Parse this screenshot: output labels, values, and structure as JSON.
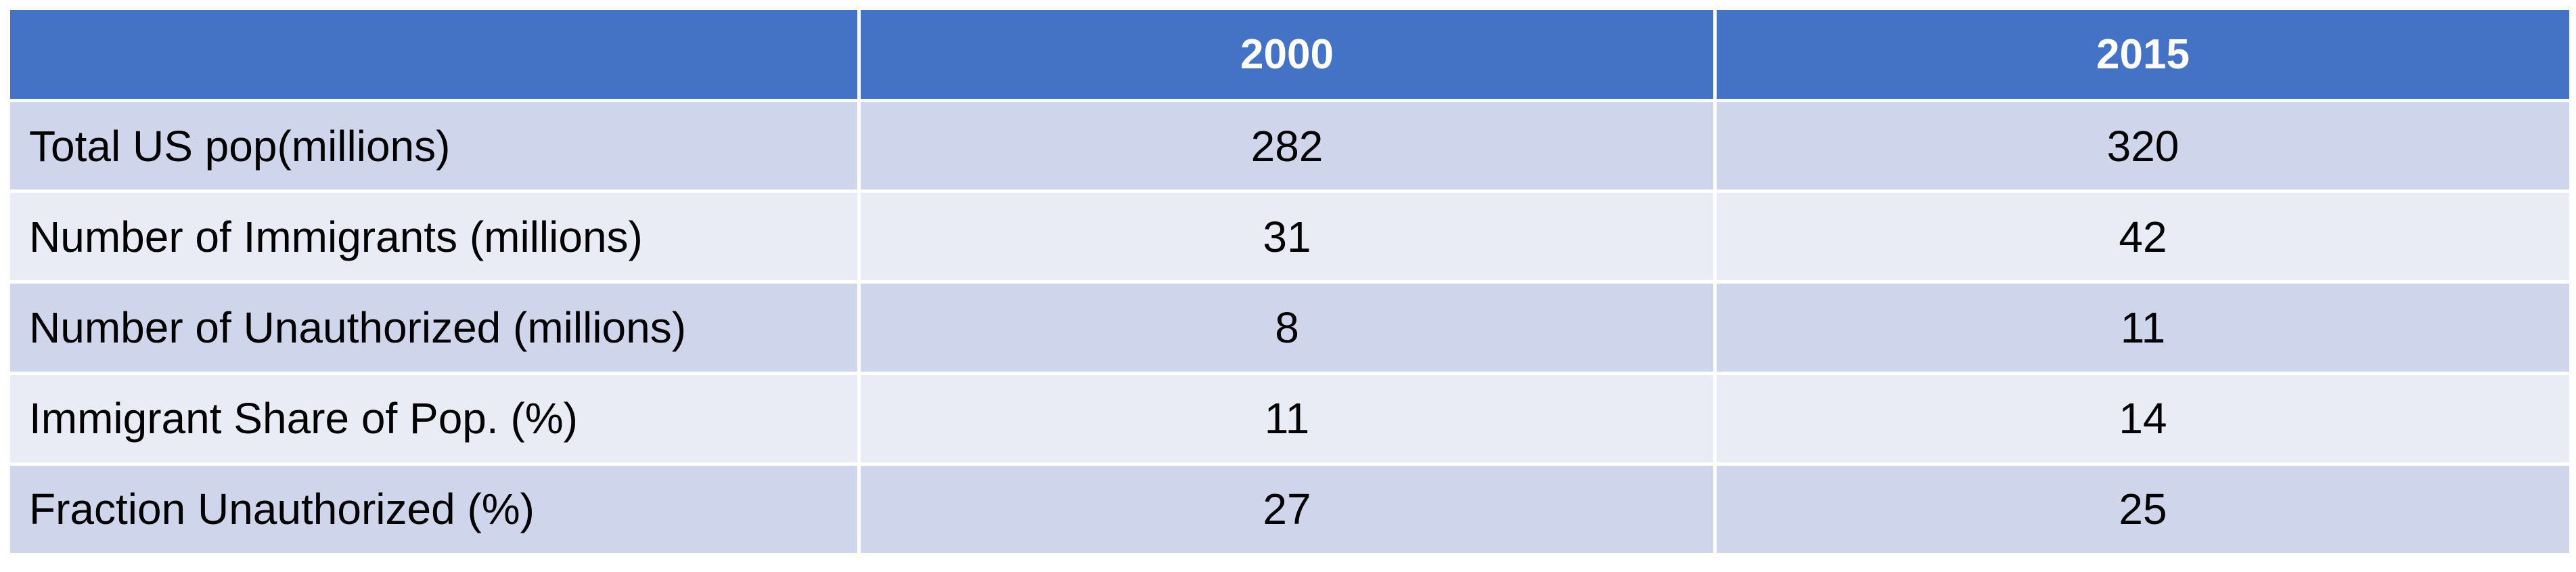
{
  "table": {
    "header": {
      "corner": "",
      "columns": [
        "2000",
        "2015"
      ]
    },
    "rows": [
      {
        "label": "Total US pop(millions)",
        "values": [
          "282",
          "320"
        ]
      },
      {
        "label": "Number of Immigrants (millions)",
        "values": [
          "31",
          "42"
        ]
      },
      {
        "label": "Number of Unauthorized (millions)",
        "values": [
          "8",
          "11"
        ]
      },
      {
        "label": "Immigrant Share of Pop. (%)",
        "values": [
          "11",
          "14"
        ]
      },
      {
        "label": "Fraction Unauthorized (%)",
        "values": [
          "27",
          "25"
        ]
      }
    ]
  },
  "colors": {
    "header": "#4472c4",
    "row_dark": "#cfd5ea",
    "row_light": "#e9ebf5",
    "header_text": "#ffffff"
  }
}
